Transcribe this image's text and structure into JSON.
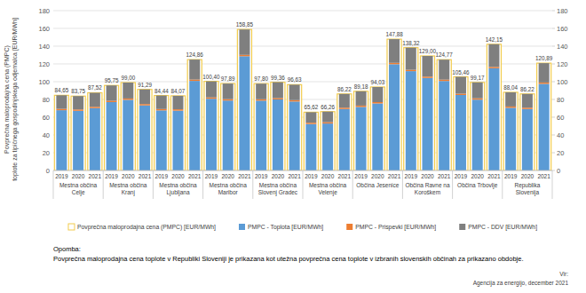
{
  "chart_data": {
    "type": "bar",
    "stacked": true,
    "grid": true,
    "legend": "bottom",
    "ylabel": [
      "Povprečna maloprodajna cena (PMPC)",
      "toplote za tipičnega gospodinjskega odjemalca [EUR/MWh]"
    ],
    "categories": [
      "2019",
      "2020",
      "2021",
      "2019",
      "2020",
      "2021",
      "2019",
      "2020",
      "2021",
      "2019",
      "2020",
      "2021",
      "2019",
      "2020",
      "2021",
      "2019",
      "2020",
      "2021",
      "2019",
      "2020",
      "2021",
      "2019",
      "2020",
      "2021",
      "2019",
      "2020",
      "2021",
      "2019",
      "2020",
      "2021"
    ],
    "groups": [
      "Mestna občina Celje",
      "Mestna občina Kranj",
      "Mestna občina Ljubljana",
      "Mestna občina Maribor",
      "Mestna občina Slovenj Gradec",
      "Mestna občina Velenje",
      "Občina Jesenice",
      "Občina Ravne na Koroškem",
      "Občina Trbovlje",
      "Republika Slovenija"
    ],
    "ylim": [
      0,
      180
    ],
    "yticks": [
      0,
      20,
      40,
      60,
      80,
      100,
      120,
      140,
      160,
      180
    ],
    "y2lim": [
      0,
      180
    ],
    "y2ticks": [
      0,
      20,
      40,
      60,
      80,
      100,
      120,
      140,
      160,
      180
    ],
    "series": [
      {
        "name": "Povprečna maloprodajna cena (PMPC) [EUR/MWh]",
        "type": "outline",
        "color": "#f2cc4e",
        "data_labels": true,
        "values": [
          84.65,
          83.75,
          87.52,
          95.75,
          99.0,
          91.29,
          84.44,
          84.07,
          124.86,
          100.4,
          97.89,
          158.85,
          97.8,
          99.36,
          96.63,
          65.62,
          66.26,
          86.22,
          89.18,
          94.03,
          147.88,
          138.32,
          129.0,
          124.77,
          105.46,
          99.17,
          142.15,
          88.04,
          86.22,
          120.89
        ],
        "value_labels": [
          "84,65",
          "83,75",
          "87,52",
          "95,75",
          "99,00",
          "91,29",
          "84,44",
          "84,07",
          "124,86",
          "100,40",
          "97,89",
          "158,85",
          "97,80",
          "99,36",
          "96,63",
          "65,62",
          "66,26",
          "86,22",
          "89,18",
          "94,03",
          "147,88",
          "138,32",
          "129,00",
          "124,77",
          "105,46",
          "99,17",
          "142,15",
          "88,04",
          "86,22",
          "120,89"
        ]
      },
      {
        "name": "PMPC - Toplota [EUR/MWh]",
        "type": "bar",
        "color": "#5b9bd5",
        "values": [
          67.9,
          67.2,
          70.2,
          77.0,
          79.6,
          73.3,
          67.7,
          67.4,
          100.9,
          80.8,
          78.8,
          128.7,
          78.7,
          80.0,
          77.7,
          52.3,
          52.9,
          69.2,
          71.6,
          75.5,
          119.7,
          111.9,
          104.2,
          100.8,
          85.0,
          79.8,
          115.1,
          70.6,
          69.2,
          97.6
        ]
      },
      {
        "name": "PMPC - Prispevki [EUR/MWh]",
        "type": "bar",
        "color": "#ed7d31",
        "values": [
          1.5,
          1.5,
          1.5,
          1.5,
          1.5,
          1.5,
          1.5,
          1.5,
          1.5,
          1.5,
          1.5,
          1.5,
          1.5,
          1.5,
          1.5,
          1.5,
          1.5,
          1.5,
          1.5,
          1.5,
          1.5,
          1.5,
          1.5,
          1.5,
          1.5,
          1.5,
          1.5,
          1.5,
          1.5,
          1.5
        ]
      },
      {
        "name": "PMPC - DDV [EUR/MWh]",
        "type": "bar",
        "color": "#7f7f7f",
        "values": [
          15.3,
          15.1,
          15.8,
          17.3,
          17.9,
          16.5,
          15.2,
          15.2,
          22.5,
          18.1,
          17.6,
          28.6,
          17.6,
          17.9,
          17.4,
          11.8,
          11.9,
          15.5,
          16.1,
          17.0,
          26.7,
          24.9,
          23.3,
          22.5,
          19.0,
          17.9,
          25.6,
          15.9,
          15.5,
          21.8
        ]
      }
    ],
    "note_title": "Opomba:",
    "note": "Povprečna maloprodajna cena toplote v Republiki Sloveniji je prikazana kot utežna povprečna cena toplote v izbranih slovenskih občinah za prikazano obdobje.",
    "source_title": "Vir:",
    "source": "Agencija za energijo, december 2021"
  }
}
